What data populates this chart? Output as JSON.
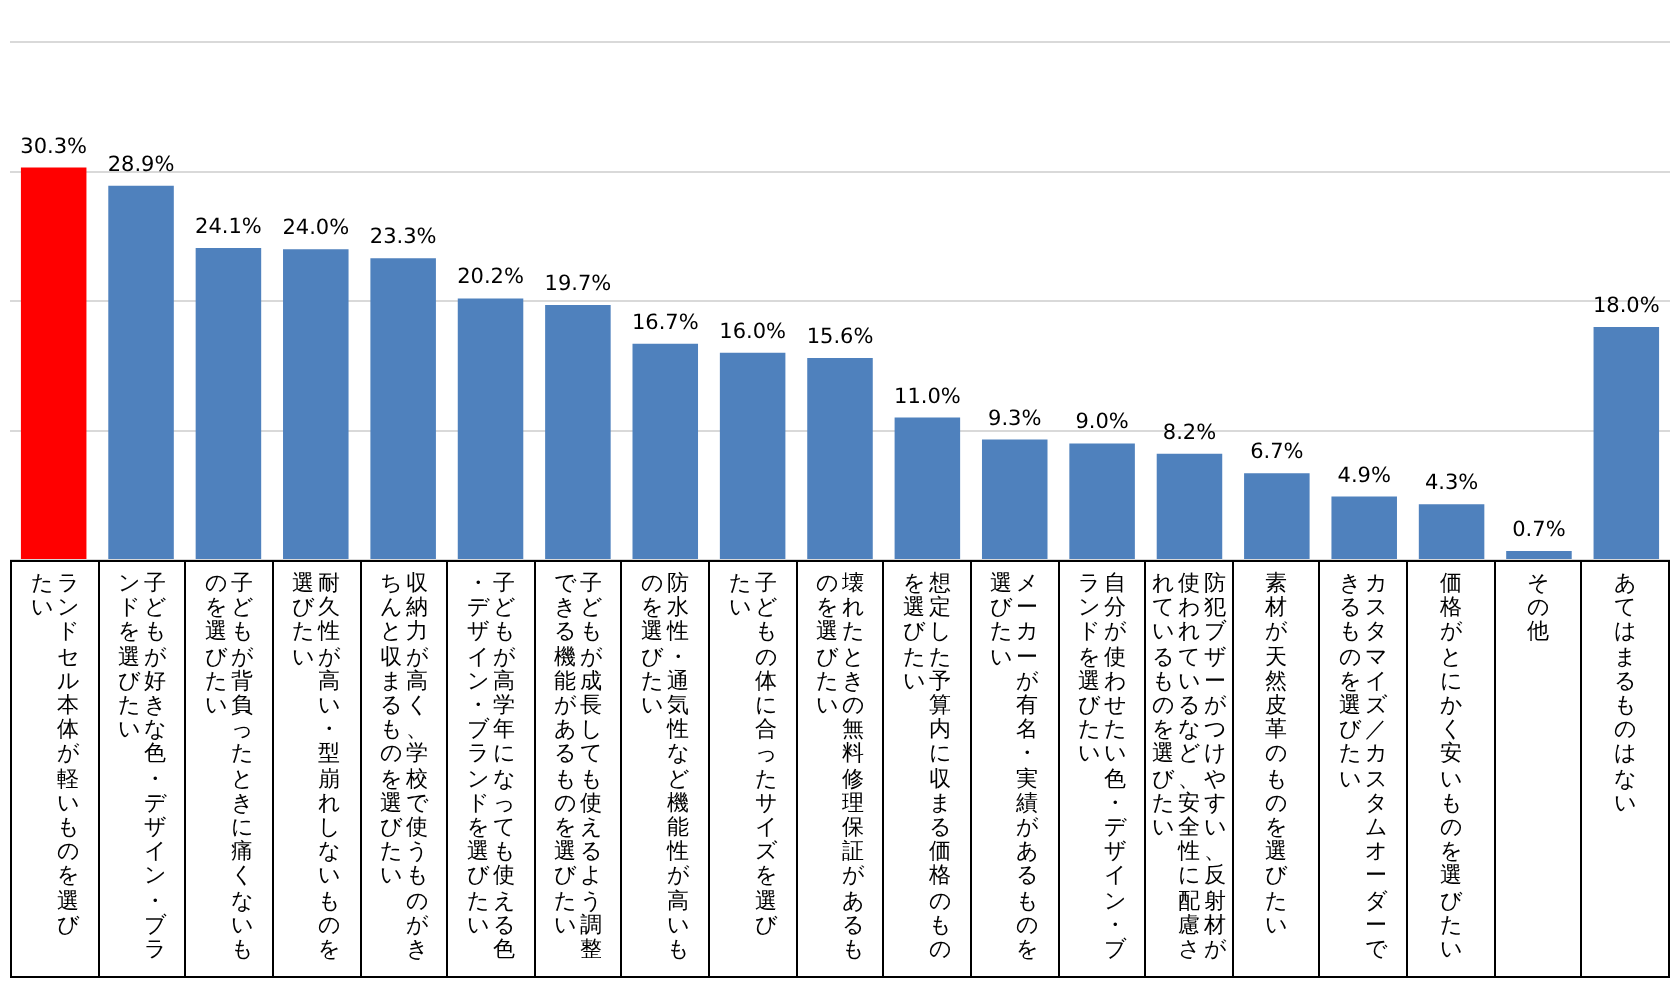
{
  "chart_data": {
    "type": "bar",
    "categories": [
      "ランドセル本体が軽いものを選びたい",
      "子どもが好きな色・デザイン・ブランドを選びたい",
      "子どもが背負ったときに痛くないものを選びたい",
      "耐久性が高い・型崩れしないものを選びたい",
      "収納力が高く、学校で使うものがきちんと収まるものを選びたい",
      "子どもが高学年になっても使える色・デザイン・ブランドを選びたい",
      "子どもが成長しても使えるよう調整できる機能があるものを選びたい",
      "防水性・通気性など機能性が高いものを選びたい",
      "子どもの体に合ったサイズを選びたい",
      "壊れたときの無料修理保証があるものを選びたい",
      "想定した予算内に収まる価格のものを選びたい",
      "メーカーが有名・実績があるものを選びたい",
      "自分が使わせたい色・デザイン・ブランドを選びたい",
      "防犯ブザーがつけやすい、反射材が使われているなど、安全性に配慮されているものを選びたい",
      "素材が天然皮革のものを選びたい",
      "カスタマイズ／カスタムオーダーできるものを選びたい",
      "価格がとにかく安いものを選びたい",
      "その他",
      "あてはまるものはない"
    ],
    "values": [
      30.3,
      28.9,
      24.1,
      24.0,
      23.3,
      20.2,
      19.7,
      16.7,
      16.0,
      15.6,
      11.0,
      9.3,
      9.0,
      8.2,
      6.7,
      4.9,
      4.3,
      0.7,
      18.0
    ],
    "value_labels": [
      "30.3%",
      "28.9%",
      "24.1%",
      "24.0%",
      "23.3%",
      "20.2%",
      "19.7%",
      "16.7%",
      "16.0%",
      "15.6%",
      "11.0%",
      "9.3%",
      "9.0%",
      "8.2%",
      "6.7%",
      "4.9%",
      "4.3%",
      "0.7%",
      "18.0%"
    ],
    "colors": [
      "#ff0000",
      "#4f81bd",
      "#4f81bd",
      "#4f81bd",
      "#4f81bd",
      "#4f81bd",
      "#4f81bd",
      "#4f81bd",
      "#4f81bd",
      "#4f81bd",
      "#4f81bd",
      "#4f81bd",
      "#4f81bd",
      "#4f81bd",
      "#4f81bd",
      "#4f81bd",
      "#4f81bd",
      "#4f81bd",
      "#4f81bd"
    ],
    "ylim": [
      0,
      40
    ],
    "yticks": [
      {
        "value": 0,
        "label": null
      },
      {
        "value": 10,
        "label": null
      },
      {
        "value": 20,
        "label": null
      },
      {
        "value": 30,
        "label": null
      },
      {
        "value": 40,
        "label": null
      }
    ],
    "grid": "y",
    "tick_labels": "x"
  }
}
